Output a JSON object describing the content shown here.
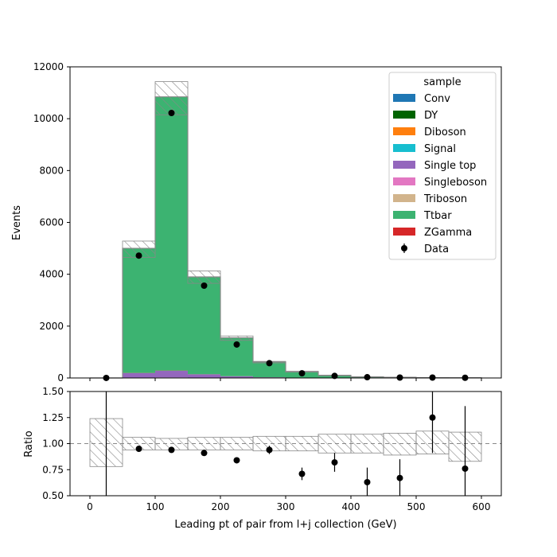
{
  "chart_data": {
    "type": "histogram",
    "xlabel": "Leading pt of pair from l+j collection (GeV)",
    "bin_edges": [
      0,
      50,
      100,
      150,
      200,
      250,
      300,
      350,
      400,
      450,
      500,
      550,
      600
    ],
    "x_ticks": [
      0,
      100,
      200,
      300,
      400,
      500,
      600
    ],
    "main": {
      "ylabel": "Events",
      "ylim": [
        0,
        12000
      ],
      "y_ticks": [
        0,
        2000,
        4000,
        6000,
        8000,
        10000,
        12000
      ],
      "stack_order": [
        "ZGamma",
        "Triboson",
        "Singleboson",
        "Single top",
        "Signal",
        "Diboson",
        "DY",
        "Conv",
        "Ttbar"
      ],
      "series": [
        {
          "name": "Conv",
          "color": "#1f77b4",
          "values": [
            0,
            0,
            0,
            0,
            0,
            0,
            0,
            0,
            0,
            0,
            0,
            0
          ]
        },
        {
          "name": "DY",
          "color": "#006400",
          "values": [
            0,
            5,
            10,
            5,
            3,
            1,
            0,
            0,
            0,
            0,
            0,
            0
          ]
        },
        {
          "name": "Diboson",
          "color": "#ff7f0e",
          "values": [
            0,
            3,
            5,
            3,
            2,
            1,
            0,
            0,
            0,
            0,
            0,
            0
          ]
        },
        {
          "name": "Signal",
          "color": "#17becf",
          "values": [
            0,
            0,
            0,
            0,
            0,
            0,
            0,
            0,
            0,
            0,
            0,
            0
          ]
        },
        {
          "name": "Single top",
          "color": "#9467bd",
          "values": [
            0,
            180,
            260,
            130,
            60,
            25,
            12,
            5,
            3,
            2,
            1,
            1
          ]
        },
        {
          "name": "Singleboson",
          "color": "#e377c2",
          "values": [
            0,
            10,
            15,
            8,
            4,
            2,
            1,
            0,
            0,
            0,
            0,
            0
          ]
        },
        {
          "name": "Triboson",
          "color": "#d2b48c",
          "values": [
            0,
            0,
            0,
            0,
            0,
            0,
            0,
            0,
            0,
            0,
            0,
            0
          ]
        },
        {
          "name": "Ttbar",
          "color": "#3cb371",
          "values": [
            0,
            4800,
            10550,
            3750,
            1480,
            590,
            220,
            90,
            40,
            20,
            12,
            8
          ]
        },
        {
          "name": "ZGamma",
          "color": "#d62728",
          "values": [
            0,
            2,
            4,
            2,
            1,
            0,
            0,
            0,
            0,
            0,
            0,
            0
          ]
        }
      ],
      "mc_uncertainty": {
        "low": [
          0,
          4650,
          10150,
          3650,
          1450,
          580,
          225,
          85,
          38,
          18,
          10,
          7
        ],
        "high": [
          0,
          5280,
          11430,
          4130,
          1620,
          640,
          260,
          110,
          50,
          28,
          18,
          12
        ]
      },
      "data": {
        "name": "Data",
        "x": [
          25,
          75,
          125,
          175,
          225,
          275,
          325,
          375,
          425,
          475,
          525,
          575
        ],
        "y": [
          1,
          4720,
          10220,
          3560,
          1290,
          570,
          180,
          80,
          30,
          15,
          15,
          8
        ]
      },
      "legend": {
        "title": "sample",
        "position": "upper right",
        "entries": [
          "Conv",
          "DY",
          "Diboson",
          "Signal",
          "Single top",
          "Singleboson",
          "Triboson",
          "Ttbar",
          "ZGamma",
          "Data"
        ]
      }
    },
    "ratio": {
      "ylabel": "Ratio",
      "ylim": [
        0.5,
        1.5
      ],
      "y_ticks": [
        "0.50",
        "0.75",
        "1.00",
        "1.25",
        "1.50"
      ],
      "reference": 1.0,
      "unc_low": [
        0.78,
        0.94,
        0.94,
        0.94,
        0.94,
        0.93,
        0.93,
        0.91,
        0.91,
        0.89,
        0.9,
        0.83
      ],
      "unc_high": [
        1.24,
        1.06,
        1.05,
        1.06,
        1.06,
        1.07,
        1.07,
        1.09,
        1.09,
        1.1,
        1.12,
        1.11
      ],
      "points": {
        "x": [
          25,
          75,
          125,
          175,
          225,
          275,
          325,
          375,
          425,
          475,
          525,
          575
        ],
        "y": [
          null,
          0.95,
          0.94,
          0.91,
          0.84,
          0.94,
          0.71,
          0.82,
          0.63,
          0.67,
          1.25,
          0.76
        ],
        "err": [
          null,
          0.01,
          0.01,
          0.02,
          0.02,
          0.04,
          0.06,
          0.09,
          0.14,
          0.18,
          0.34,
          0.6
        ]
      }
    }
  }
}
